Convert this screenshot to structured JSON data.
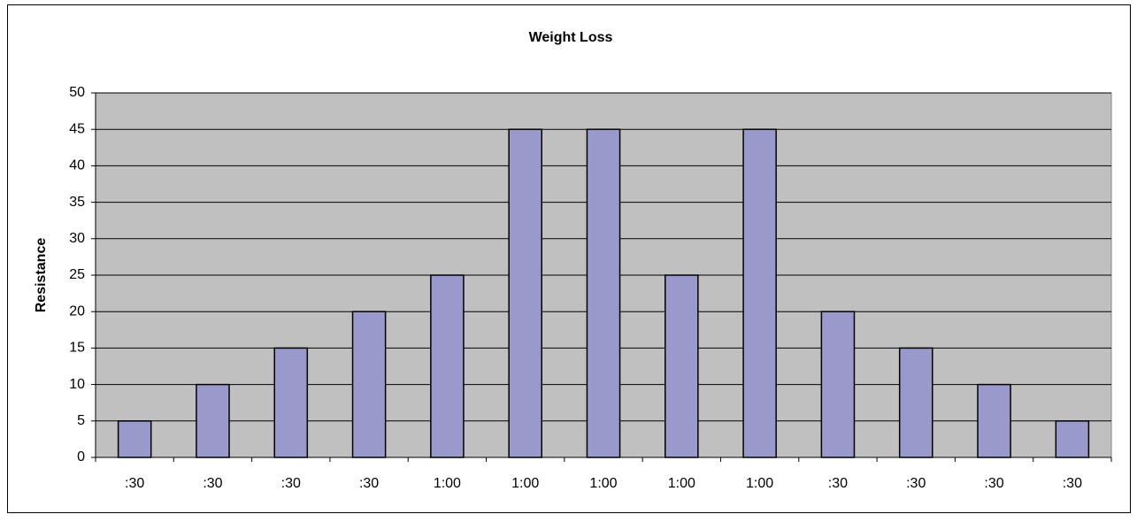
{
  "chart_data": {
    "type": "bar",
    "title": "Weight Loss",
    "y_label": "Resistance",
    "categories": [
      ":30",
      ":30",
      ":30",
      ":30",
      "1:00",
      "1:00",
      "1:00",
      "1:00",
      "1:00",
      ":30",
      ":30",
      ":30",
      ":30"
    ],
    "values": [
      5,
      10,
      15,
      20,
      25,
      45,
      45,
      25,
      45,
      20,
      15,
      10,
      5
    ],
    "color": "#9999cc",
    "ylim": [
      0,
      50
    ],
    "yticks": [
      0,
      5,
      10,
      15,
      20,
      25,
      30,
      35,
      40,
      45,
      50
    ],
    "grid": true
  }
}
